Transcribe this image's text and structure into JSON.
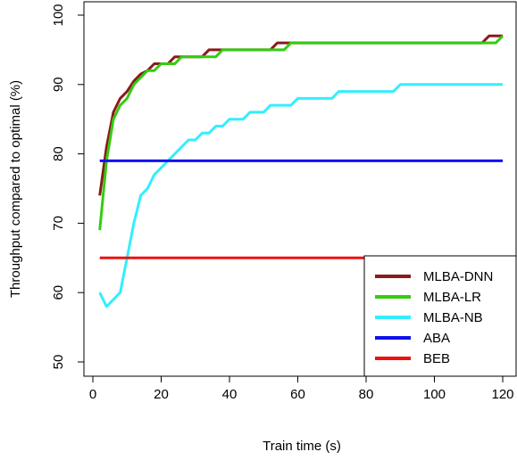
{
  "chart_data": {
    "type": "line",
    "title": "",
    "xlabel": "Train time (s)",
    "ylabel": "Throughput compared to optimal (%)",
    "xlim": [
      0,
      120
    ],
    "ylim": [
      48,
      101
    ],
    "x_ticks": [
      "0",
      "20",
      "40",
      "60",
      "80",
      "100",
      "120"
    ],
    "y_ticks": [
      "50",
      "60",
      "70",
      "80",
      "90",
      "100"
    ],
    "grid": false,
    "legend_position": "bottom-right",
    "series": [
      {
        "name": "MLBA-DNN",
        "color": "#8b1a1a",
        "points": [
          [
            2,
            74
          ],
          [
            4,
            81
          ],
          [
            6,
            86
          ],
          [
            8,
            88
          ],
          [
            10,
            89
          ],
          [
            12,
            90.5
          ],
          [
            14,
            91.5
          ],
          [
            16,
            92
          ],
          [
            18,
            93
          ],
          [
            22,
            93
          ],
          [
            24,
            94
          ],
          [
            32,
            94
          ],
          [
            34,
            95
          ],
          [
            52,
            95
          ],
          [
            54,
            96
          ],
          [
            114,
            96
          ],
          [
            116,
            97
          ],
          [
            120,
            97
          ]
        ]
      },
      {
        "name": "MLBA-LR",
        "color": "#33cc11",
        "points": [
          [
            2,
            69
          ],
          [
            4,
            79
          ],
          [
            6,
            85
          ],
          [
            8,
            87
          ],
          [
            10,
            88
          ],
          [
            12,
            90
          ],
          [
            14,
            91
          ],
          [
            16,
            92
          ],
          [
            18,
            92
          ],
          [
            20,
            93
          ],
          [
            24,
            93
          ],
          [
            26,
            94
          ],
          [
            36,
            94
          ],
          [
            38,
            95
          ],
          [
            56,
            95
          ],
          [
            58,
            96
          ],
          [
            118,
            96
          ],
          [
            120,
            97
          ]
        ]
      },
      {
        "name": "MLBA-NB",
        "color": "#33eeff",
        "points": [
          [
            2,
            60
          ],
          [
            4,
            58
          ],
          [
            6,
            59
          ],
          [
            8,
            60
          ],
          [
            10,
            65
          ],
          [
            12,
            70
          ],
          [
            14,
            74
          ],
          [
            16,
            75
          ],
          [
            18,
            77
          ],
          [
            20,
            78
          ],
          [
            22,
            79
          ],
          [
            24,
            80
          ],
          [
            26,
            81
          ],
          [
            28,
            82
          ],
          [
            30,
            82
          ],
          [
            32,
            83
          ],
          [
            34,
            83
          ],
          [
            36,
            84
          ],
          [
            38,
            84
          ],
          [
            40,
            85
          ],
          [
            44,
            85
          ],
          [
            46,
            86
          ],
          [
            50,
            86
          ],
          [
            52,
            87
          ],
          [
            58,
            87
          ],
          [
            60,
            88
          ],
          [
            70,
            88
          ],
          [
            72,
            89
          ],
          [
            88,
            89
          ],
          [
            90,
            90
          ],
          [
            120,
            90
          ]
        ]
      },
      {
        "name": "ABA",
        "color": "#1111ee",
        "points": [
          [
            2,
            79
          ],
          [
            120,
            79
          ]
        ]
      },
      {
        "name": "BEB",
        "color": "#ee1111",
        "points": [
          [
            2,
            65
          ],
          [
            120,
            65
          ]
        ]
      }
    ]
  }
}
